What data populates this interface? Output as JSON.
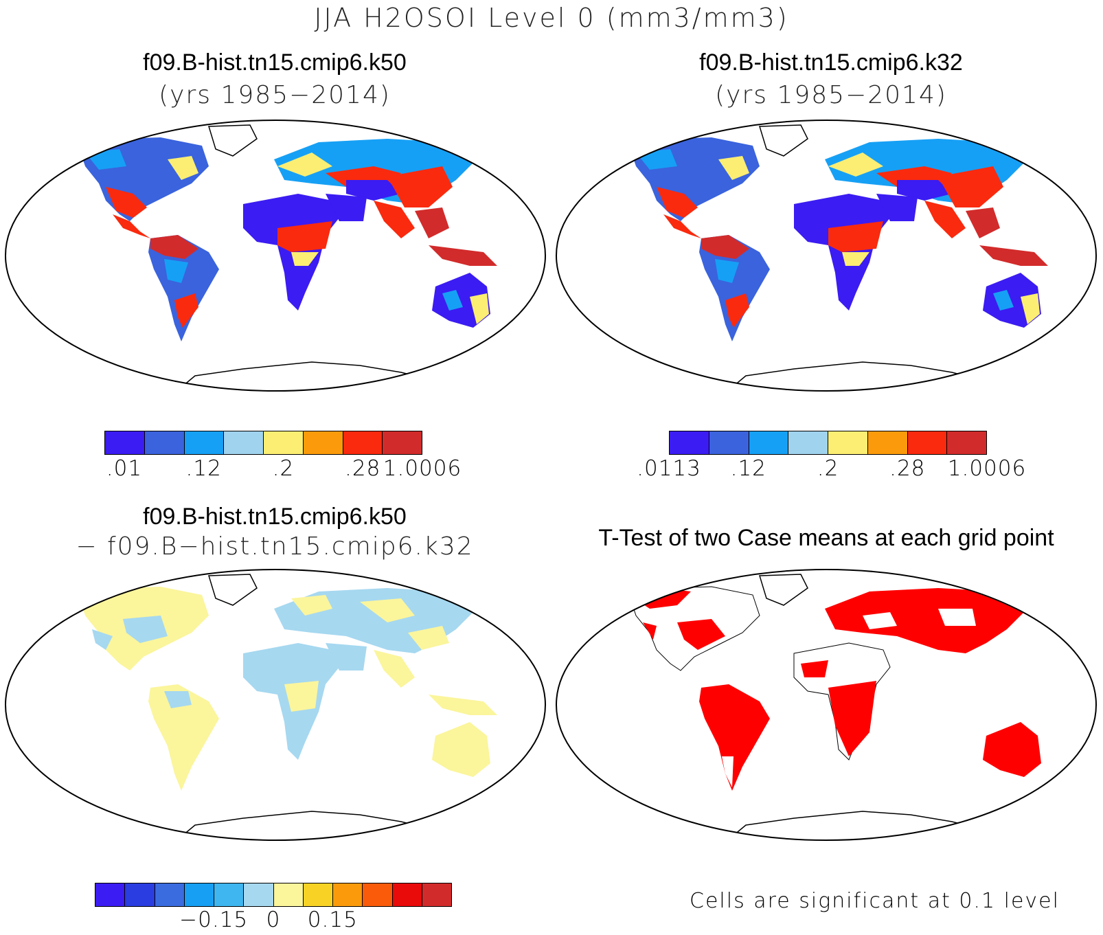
{
  "title": "JJA H2OSOI Level 0 (mm3/mm3)",
  "panels": {
    "top_left": {
      "title": "f09.B-hist.tn15.cmip6.k50",
      "subtitle": "(yrs 1985−2014)"
    },
    "top_right": {
      "title": "f09.B-hist.tn15.cmip6.k32",
      "subtitle": "(yrs 1985−2014)"
    },
    "bottom_left": {
      "title": "f09.B-hist.tn15.cmip6.k50",
      "subtitle": "− f09.B−hist.tn15.cmip6.k32"
    },
    "bottom_right": {
      "title": "T-Test of two Case means at each grid point",
      "note": "Cells are significant at 0.1 level"
    }
  },
  "colorbars": {
    "top_left": {
      "colors": [
        "#3b1cf2",
        "#3a63dd",
        "#16a0f5",
        "#9fd3ee",
        "#fbee72",
        "#fb9b0b",
        "#fa2a0e",
        "#d22b2b"
      ],
      "labels": [
        ".01",
        ".12",
        ".2",
        ".28",
        "1.0006"
      ]
    },
    "top_right": {
      "colors": [
        "#3b1cf2",
        "#3a63dd",
        "#16a0f5",
        "#9fd3ee",
        "#fbee72",
        "#fb9b0b",
        "#fa2a0e",
        "#d22b2b"
      ],
      "labels": [
        ".0113",
        ".12",
        ".2",
        ".28",
        "1.0006"
      ]
    },
    "bottom_left": {
      "colors": [
        "#3b1cf2",
        "#2a3de0",
        "#3a6ce0",
        "#179ff3",
        "#3fb6ef",
        "#a6d8f0",
        "#fbf59c",
        "#f8d326",
        "#fb9b0b",
        "#f95b0b",
        "#e90a0a",
        "#d22b2b"
      ],
      "labels": [
        "−0.15",
        "0",
        "0.15"
      ]
    }
  }
}
